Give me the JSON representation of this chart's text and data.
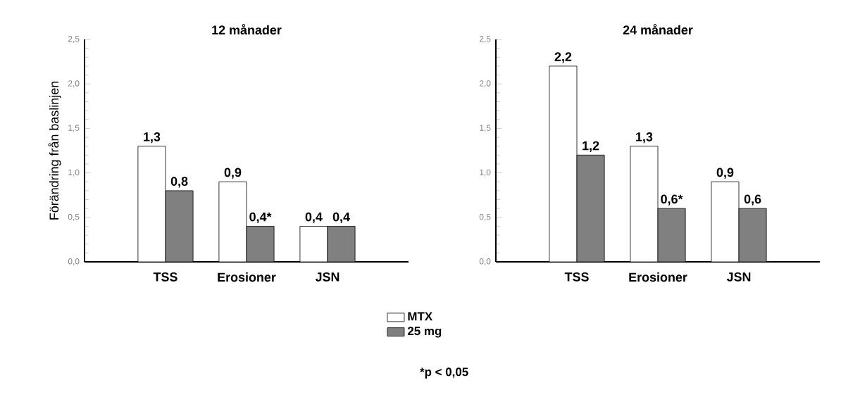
{
  "chart_data": [
    {
      "type": "bar",
      "title": "12 månader",
      "ylabel": "Förändring från baslinjen",
      "categories": [
        "TSS",
        "Erosioner",
        "JSN"
      ],
      "series": [
        {
          "name": "MTX",
          "color": "#ffffff",
          "values": [
            1.3,
            0.9,
            0.4
          ],
          "value_labels": [
            "1,3",
            "0,9",
            "0,4"
          ]
        },
        {
          "name": "25 mg",
          "color": "#808080",
          "values": [
            0.8,
            0.4,
            0.4
          ],
          "value_labels": [
            "0,8",
            "0,4*",
            "0,4"
          ]
        }
      ],
      "ylim": [
        0,
        2.5
      ],
      "yticks": [
        {
          "value": 0,
          "label": "0,0"
        },
        {
          "value": 0.5,
          "label": "0,5"
        },
        {
          "value": 1,
          "label": "1,0"
        },
        {
          "value": 1.5,
          "label": "1,5"
        },
        {
          "value": 2,
          "label": "2,0"
        },
        {
          "value": 2.5,
          "label": "2,5"
        }
      ],
      "legend": "bottom right",
      "grid": false,
      "annotations": [
        "*p < 0,05"
      ]
    },
    {
      "type": "bar",
      "title": "24 månader",
      "categories": [
        "TSS",
        "Erosioner",
        "JSN"
      ],
      "series": [
        {
          "color": "#ffffff",
          "values": [
            2.2,
            1.3,
            0.9
          ],
          "value_labels": [
            "2,2",
            "1,3",
            "0,9"
          ]
        },
        {
          "color": "#808080",
          "values": [
            1.2,
            0.6,
            0.6
          ],
          "value_labels": [
            "1,2",
            "0,6*",
            "0,6"
          ]
        }
      ],
      "ylim": [
        0,
        2.5
      ],
      "yticks": [
        {
          "value": 0,
          "label": "0,0"
        },
        {
          "value": 0.5,
          "label": "0,5"
        },
        {
          "value": 1,
          "label": "1,0"
        },
        {
          "value": 1.5,
          "label": "1,5"
        },
        {
          "value": 2,
          "label": "2,0"
        },
        {
          "value": 2.5,
          "label": "2,5"
        }
      ],
      "grid": false
    }
  ]
}
